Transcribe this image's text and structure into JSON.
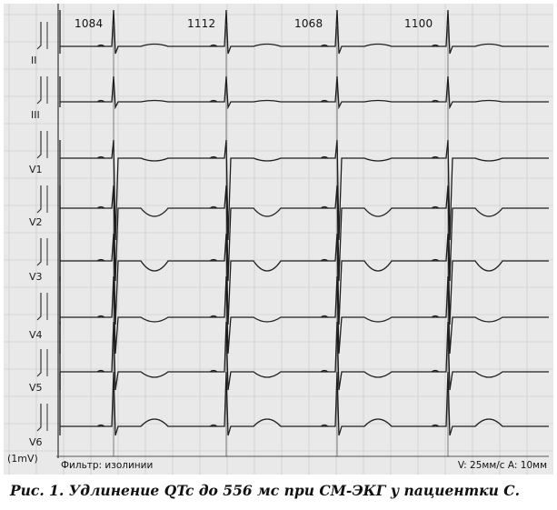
{
  "ecg": {
    "rr_intervals": [
      "1084",
      "1112",
      "1068",
      "1100"
    ],
    "leads": [
      "II",
      "III",
      "V1",
      "V2",
      "V3",
      "V4",
      "V5",
      "V6"
    ],
    "calibration": "(1mV)",
    "filter_label": "Фильтр: изолинии",
    "speed_label": "V: 25мм/с  A: 10мм"
  },
  "caption": "Рис. 1. Удлинение QTc до 556 мс при СМ-ЭКГ у пациентки С."
}
